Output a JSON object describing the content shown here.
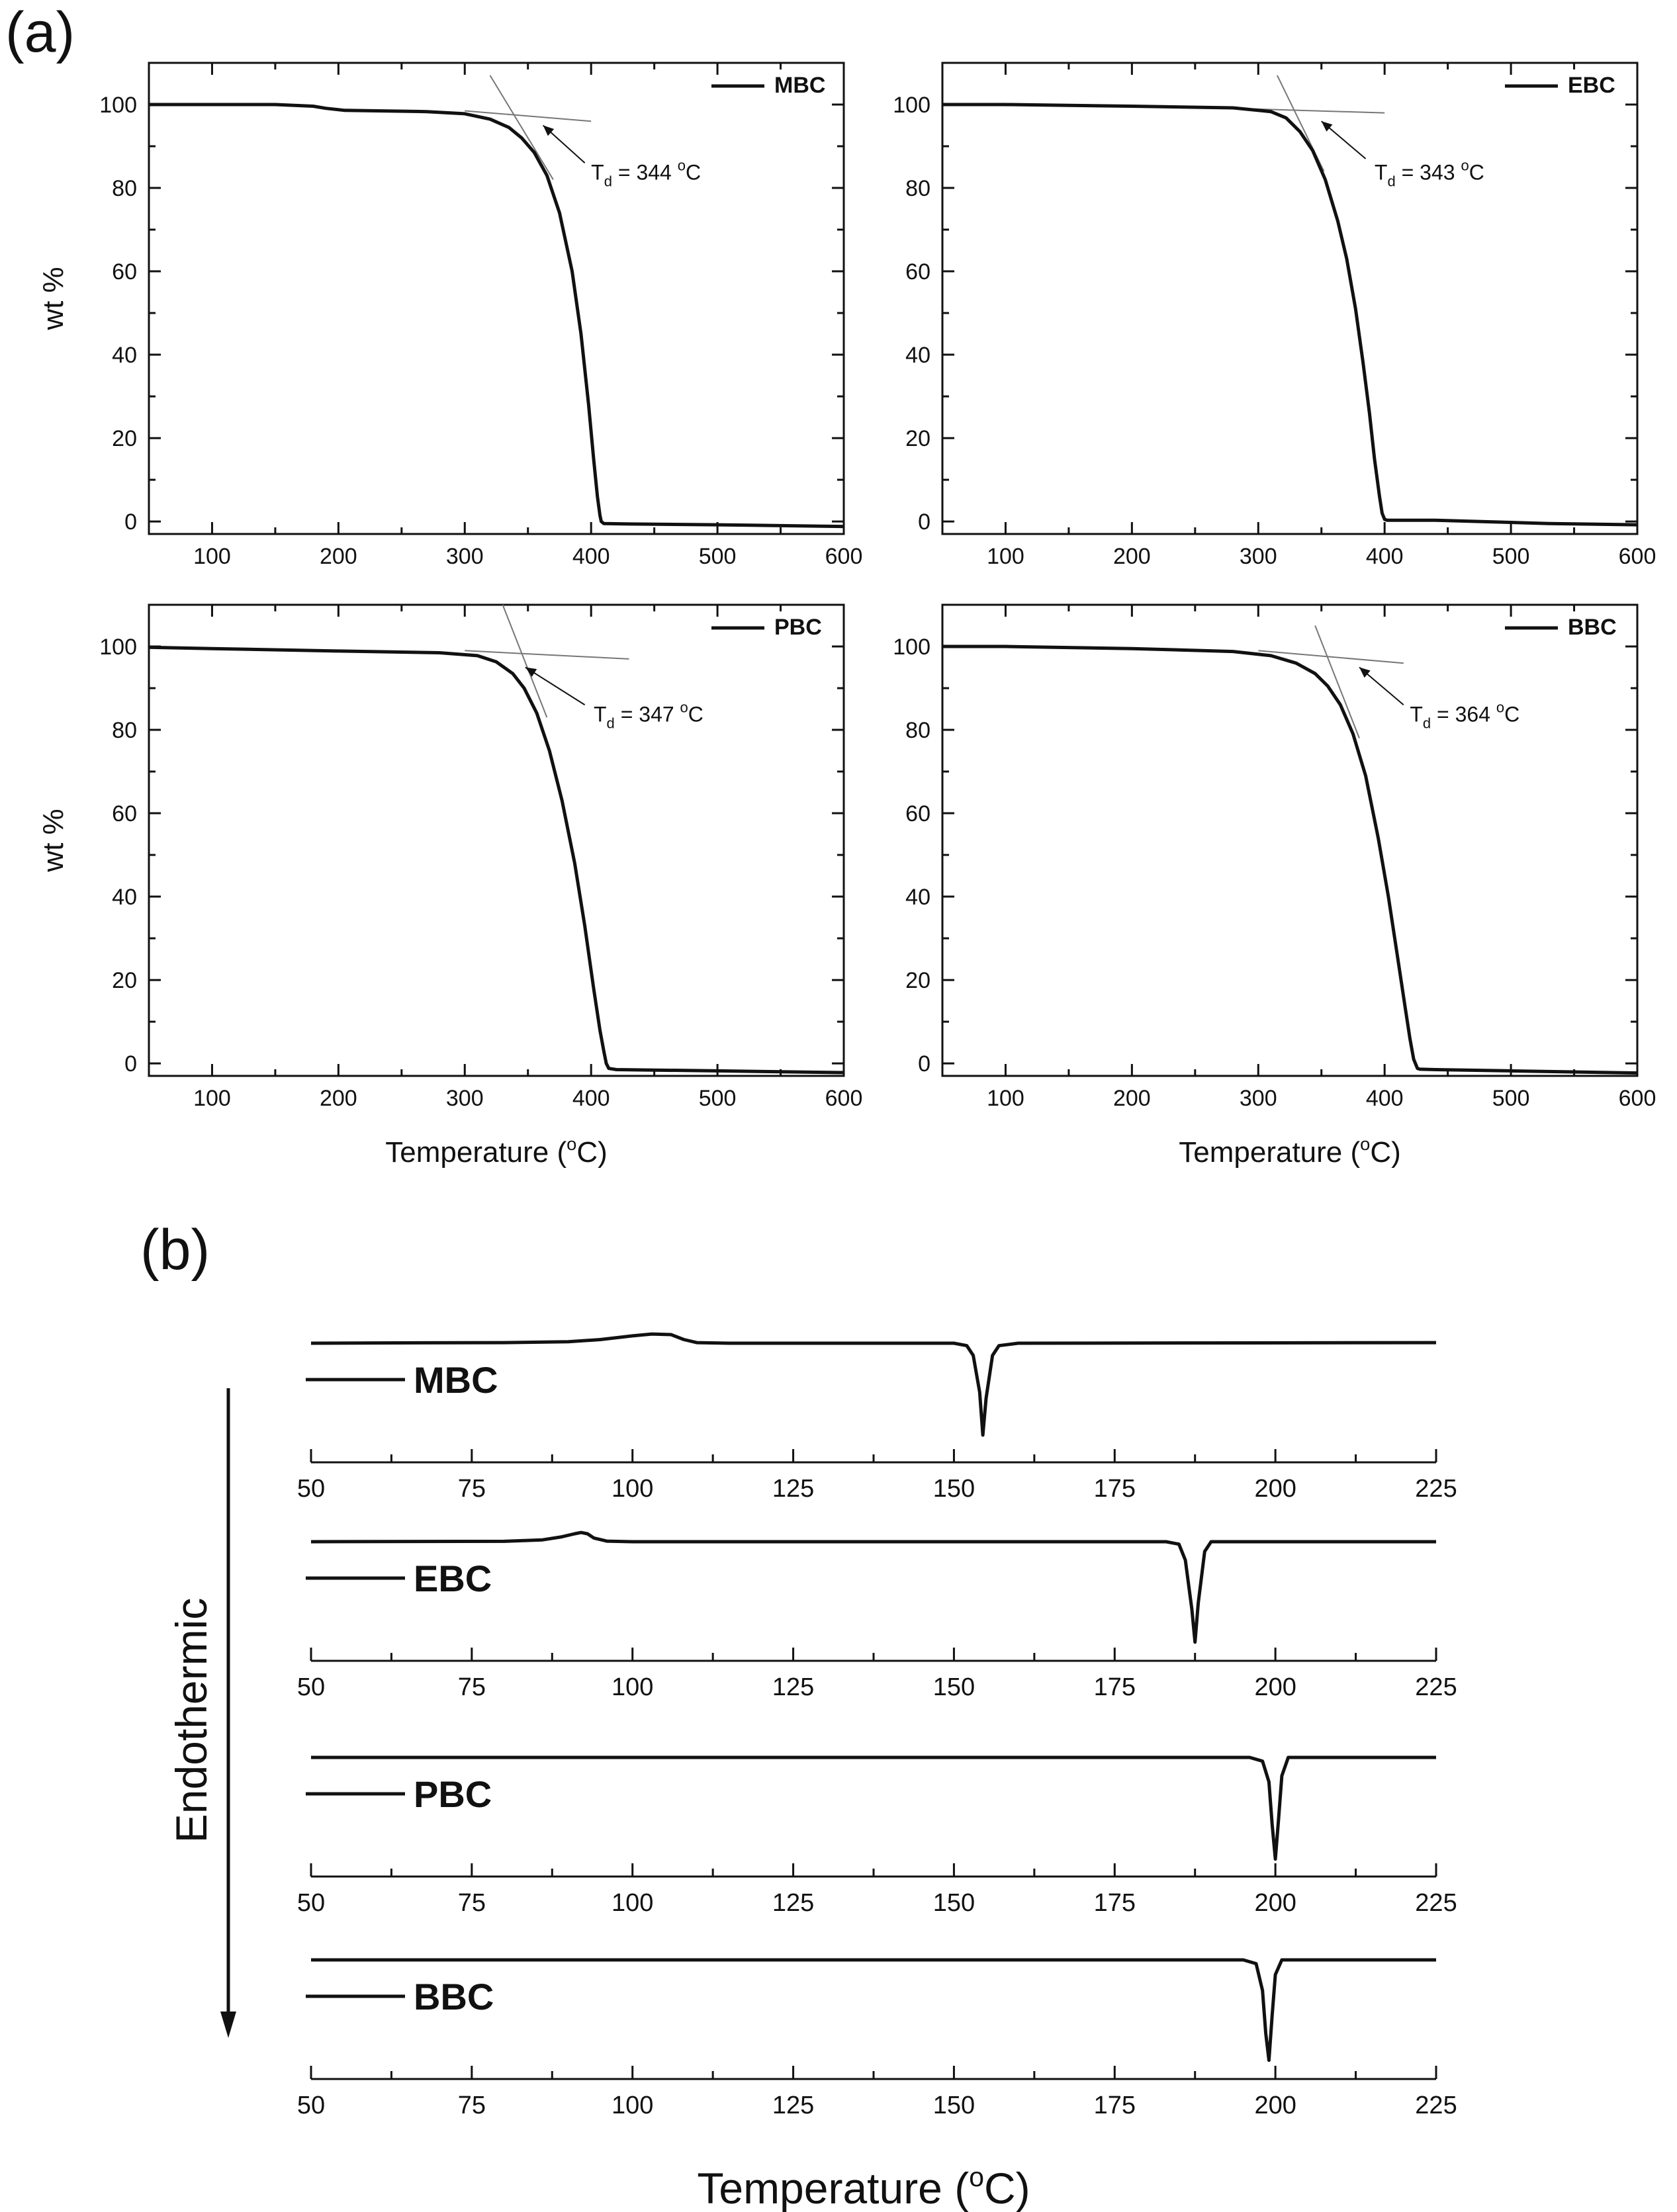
{
  "figure": {
    "label_a": "(a)",
    "label_b": "(b)",
    "tga_ylabel": "wt %",
    "tga_xlabel": "Temperature (°C)",
    "dsc_arrow_label": "Endothermic",
    "dsc_xlabel": "Temperature (°C)"
  },
  "chart_data": [
    {
      "type": "line",
      "panel": "a",
      "id": "tga-mbc",
      "legend": "MBC",
      "xlim": [
        50,
        600
      ],
      "ylim": [
        -3,
        110
      ],
      "xticks": [
        100,
        200,
        300,
        400,
        500,
        600
      ],
      "yticks": [
        0,
        20,
        40,
        60,
        80,
        100
      ],
      "show_xlabel": false,
      "show_ylabel": true,
      "onset_label": "T",
      "onset_sub": "d",
      "onset_value": "= 344 °C",
      "onset_T": 344,
      "baseline_line": [
        [
          300,
          98.5
        ],
        [
          400,
          96
        ]
      ],
      "tangent_line": [
        [
          320,
          107
        ],
        [
          370,
          82
        ]
      ],
      "annotation_arrow": {
        "from": [
          395,
          86
        ],
        "to": [
          362,
          95
        ]
      },
      "annotation_text_at": [
        400,
        82
      ],
      "x": [
        50,
        100,
        150,
        180,
        190,
        205,
        230,
        270,
        300,
        320,
        335,
        345,
        355,
        365,
        375,
        385,
        392,
        398,
        402,
        405,
        407,
        408,
        410,
        430,
        500,
        600
      ],
      "y": [
        100,
        100,
        100,
        99.6,
        99.1,
        98.6,
        98.5,
        98.3,
        97.8,
        96.5,
        94.5,
        92,
        88.5,
        83,
        74,
        60,
        45,
        28,
        15,
        6,
        1.5,
        0,
        -0.5,
        -0.6,
        -0.8,
        -1.2
      ]
    },
    {
      "type": "line",
      "panel": "a",
      "id": "tga-ebc",
      "legend": "EBC",
      "xlim": [
        50,
        600
      ],
      "ylim": [
        -3,
        110
      ],
      "xticks": [
        100,
        200,
        300,
        400,
        500,
        600
      ],
      "yticks": [
        0,
        20,
        40,
        60,
        80,
        100
      ],
      "show_xlabel": false,
      "show_ylabel": false,
      "onset_label": "T",
      "onset_sub": "d",
      "onset_value": "= 343 °C",
      "onset_T": 343,
      "baseline_line": [
        [
          290,
          99
        ],
        [
          400,
          98
        ]
      ],
      "tangent_line": [
        [
          315,
          107
        ],
        [
          352,
          84
        ]
      ],
      "annotation_arrow": {
        "from": [
          385,
          87
        ],
        "to": [
          350,
          96
        ]
      },
      "annotation_text_at": [
        392,
        82
      ],
      "x": [
        50,
        100,
        200,
        280,
        310,
        322,
        333,
        343,
        353,
        363,
        370,
        377,
        383,
        388,
        392,
        396,
        398,
        400,
        402,
        440,
        530,
        600
      ],
      "y": [
        100,
        100,
        99.6,
        99.2,
        98.3,
        96.8,
        93.5,
        89,
        82,
        72,
        63,
        51,
        38,
        26,
        15,
        6,
        2,
        0.5,
        0.3,
        0.3,
        -0.5,
        -0.8
      ]
    },
    {
      "type": "line",
      "panel": "a",
      "id": "tga-pbc",
      "legend": "PBC",
      "xlim": [
        50,
        600
      ],
      "ylim": [
        -3,
        110
      ],
      "xticks": [
        100,
        200,
        300,
        400,
        500,
        600
      ],
      "yticks": [
        0,
        20,
        40,
        60,
        80,
        100
      ],
      "show_xlabel": true,
      "show_ylabel": true,
      "onset_label": "T",
      "onset_sub": "d",
      "onset_value": "= 347 °C",
      "onset_T": 347,
      "baseline_line": [
        [
          300,
          99
        ],
        [
          430,
          97
        ]
      ],
      "tangent_line": [
        [
          330,
          110
        ],
        [
          365,
          83
        ]
      ],
      "annotation_arrow": {
        "from": [
          395,
          86
        ],
        "to": [
          348,
          95
        ]
      },
      "annotation_text_at": [
        402,
        82
      ],
      "x": [
        50,
        100,
        200,
        280,
        310,
        325,
        338,
        347,
        357,
        367,
        377,
        387,
        395,
        402,
        407,
        410,
        412,
        414,
        420,
        500,
        600
      ],
      "y": [
        99.8,
        99.5,
        98.9,
        98.5,
        97.8,
        96.3,
        93.5,
        90,
        84,
        75,
        63,
        48,
        33,
        18,
        8,
        3,
        0,
        -1.2,
        -1.5,
        -1.8,
        -2.2
      ]
    },
    {
      "type": "line",
      "panel": "a",
      "id": "tga-bbc",
      "legend": "BBC",
      "xlim": [
        50,
        600
      ],
      "ylim": [
        -3,
        110
      ],
      "xticks": [
        100,
        200,
        300,
        400,
        500,
        600
      ],
      "yticks": [
        0,
        20,
        40,
        60,
        80,
        100
      ],
      "show_xlabel": true,
      "show_ylabel": false,
      "onset_label": "T",
      "onset_sub": "d",
      "onset_value": "= 364 °C",
      "onset_T": 364,
      "baseline_line": [
        [
          300,
          99
        ],
        [
          415,
          96
        ]
      ],
      "tangent_line": [
        [
          345,
          105
        ],
        [
          380,
          78
        ]
      ],
      "annotation_arrow": {
        "from": [
          415,
          86
        ],
        "to": [
          380,
          95
        ]
      },
      "annotation_text_at": [
        420,
        82
      ],
      "x": [
        50,
        100,
        200,
        280,
        310,
        330,
        345,
        355,
        365,
        375,
        385,
        395,
        403,
        410,
        416,
        420,
        423,
        426,
        428,
        440,
        500,
        600
      ],
      "y": [
        100,
        100,
        99.5,
        98.8,
        97.8,
        96,
        93.5,
        90.5,
        86,
        79,
        69,
        54,
        40,
        26,
        14,
        6,
        1,
        -1.2,
        -1.4,
        -1.5,
        -1.8,
        -2.3
      ]
    },
    {
      "type": "line",
      "panel": "b",
      "id": "dsc-mbc",
      "legend": "MBC",
      "xlim": [
        50,
        225
      ],
      "xticks": [
        50,
        75,
        100,
        125,
        150,
        175,
        200,
        225
      ],
      "baseline": 0,
      "x": [
        50,
        60,
        80,
        90,
        95,
        100,
        103,
        106,
        108,
        110,
        115,
        150,
        152,
        153,
        154,
        154.5,
        155,
        156,
        157,
        160,
        225
      ],
      "y": [
        0,
        0.2,
        0.5,
        1.2,
        3,
        6,
        7.5,
        7,
        3,
        0.5,
        0,
        0,
        -2,
        -10,
        -40,
        -75,
        -45,
        -10,
        -2,
        0,
        0.5
      ]
    },
    {
      "type": "line",
      "panel": "b",
      "id": "dsc-ebc",
      "legend": "EBC",
      "xlim": [
        50,
        225
      ],
      "xticks": [
        50,
        75,
        100,
        125,
        150,
        175,
        200,
        225
      ],
      "baseline": 0,
      "x": [
        50,
        80,
        86,
        89,
        91,
        92,
        93,
        94,
        96,
        100,
        183,
        185,
        186,
        187,
        187.5,
        188,
        189,
        190,
        225
      ],
      "y": [
        0,
        0.3,
        1.5,
        4,
        6.5,
        7.5,
        6.5,
        3,
        0.5,
        0,
        0,
        -2,
        -15,
        -55,
        -82,
        -50,
        -8,
        0,
        0
      ]
    },
    {
      "type": "line",
      "panel": "b",
      "id": "dsc-pbc",
      "legend": "PBC",
      "xlim": [
        50,
        225
      ],
      "xticks": [
        50,
        75,
        100,
        125,
        150,
        175,
        200,
        225
      ],
      "baseline": 0,
      "x": [
        50,
        196,
        198,
        199,
        199.5,
        200,
        200.5,
        201,
        202,
        225
      ],
      "y": [
        0,
        0,
        -3,
        -20,
        -55,
        -83,
        -50,
        -15,
        0,
        0
      ]
    },
    {
      "type": "line",
      "panel": "b",
      "id": "dsc-bbc",
      "legend": "BBC",
      "xlim": [
        50,
        225
      ],
      "xticks": [
        50,
        75,
        100,
        125,
        150,
        175,
        200,
        225
      ],
      "baseline": 0,
      "x": [
        50,
        195,
        197,
        198,
        198.5,
        199,
        199.5,
        200,
        201,
        225
      ],
      "y": [
        0,
        0,
        -3,
        -25,
        -60,
        -82,
        -45,
        -12,
        0,
        0
      ]
    }
  ]
}
